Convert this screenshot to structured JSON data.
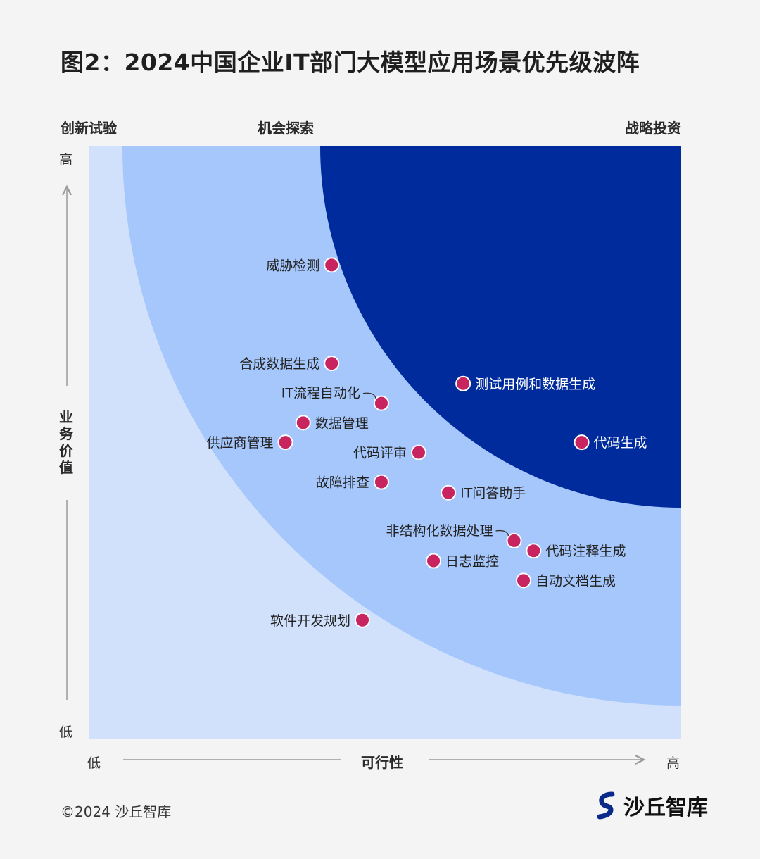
{
  "title": "图2：2024中国企业IT部门大模型应用场景优先级波阵",
  "zones": {
    "left": "创新试验",
    "middle": "机会探索",
    "right": "战略投资"
  },
  "colors": {
    "outer": "#d1e1fb",
    "middle": "#a6c7fb",
    "inner": "#002b9c",
    "point": "#c8245f",
    "point_stroke": "#ffffff",
    "arrow": "#9a9a9a"
  },
  "chart_data": {
    "type": "scatter",
    "xlabel": "可行性",
    "ylabel": "业务价值",
    "x_low": "低",
    "x_high": "高",
    "y_low": "低",
    "y_high": "高",
    "points": [
      {
        "label": "威胁检测",
        "x": 41.0,
        "y": 80.0
      },
      {
        "label": "合成数据生成",
        "x": 41.0,
        "y": 63.4
      },
      {
        "label": "测试用例和数据生成",
        "x": 63.2,
        "y": 60.0
      },
      {
        "label": "IT流程自动化",
        "x": 49.4,
        "y": 56.7
      },
      {
        "label": "数据管理",
        "x": 36.2,
        "y": 53.4
      },
      {
        "label": "供应商管理",
        "x": 33.2,
        "y": 50.1
      },
      {
        "label": "代码生成",
        "x": 83.2,
        "y": 50.1
      },
      {
        "label": "代码评审",
        "x": 55.7,
        "y": 48.4
      },
      {
        "label": "故障排查",
        "x": 49.4,
        "y": 43.4
      },
      {
        "label": "IT问答助手",
        "x": 60.7,
        "y": 41.6
      },
      {
        "label": "非结构化数据处理",
        "x": 71.8,
        "y": 33.5
      },
      {
        "label": "代码注释生成",
        "x": 75.1,
        "y": 31.8
      },
      {
        "label": "日志监控",
        "x": 58.2,
        "y": 30.1
      },
      {
        "label": "自动文档生成",
        "x": 73.4,
        "y": 26.8
      },
      {
        "label": "软件开发规划",
        "x": 46.2,
        "y": 20.1
      }
    ]
  },
  "footer": "©2024 沙丘智库",
  "brand": {
    "name": "沙丘智库",
    "logo_icon": "s-wave-logo"
  }
}
